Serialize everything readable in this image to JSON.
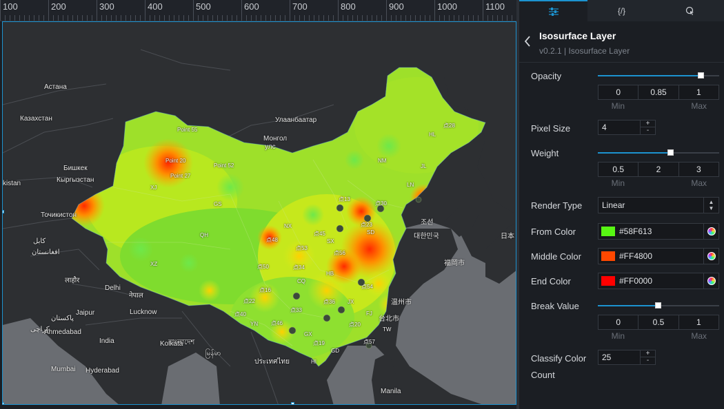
{
  "ruler": {
    "ticks": [
      "100",
      "200",
      "300",
      "400",
      "500",
      "600",
      "700",
      "800",
      "900",
      "1000",
      "1100"
    ]
  },
  "map": {
    "country_labels": [
      {
        "text": "Астана"
      },
      {
        "text": "Казахстан"
      },
      {
        "text": "Бишкек"
      },
      {
        "text": "Кыргызстан"
      },
      {
        "text": "kistan"
      },
      {
        "text": "Точикистон"
      },
      {
        "text": "کابل"
      },
      {
        "text": "افغانستان"
      },
      {
        "text": "Улаанбаатар"
      },
      {
        "text": "Монгол"
      },
      {
        "text": "улс"
      },
      {
        "text": "लाहौर"
      },
      {
        "text": "Delhi"
      },
      {
        "text": "नेपाल"
      },
      {
        "text": "Lucknow"
      },
      {
        "text": "Jaipur"
      },
      {
        "text": "پاکستان"
      },
      {
        "text": "کراچی"
      },
      {
        "text": "Ahmedabad"
      },
      {
        "text": "India"
      },
      {
        "text": "বাংলাদেশ"
      },
      {
        "text": "Kolkata"
      },
      {
        "text": "Mumbai"
      },
      {
        "text": "Hyderabad"
      },
      {
        "text": "မြန်မာ"
      },
      {
        "text": "ประเทศไทย"
      },
      {
        "text": "Manila"
      },
      {
        "text": "대한민국"
      },
      {
        "text": "조선"
      },
      {
        "text": "福岡市"
      },
      {
        "text": "日本"
      },
      {
        "text": "台北市"
      },
      {
        "text": "温州市"
      }
    ],
    "data_labels": [
      {
        "text": "Point 55"
      },
      {
        "text": "Point 20"
      },
      {
        "text": "Point 27"
      },
      {
        "text": "Point 52"
      },
      {
        "text": "XJ"
      },
      {
        "text": "GS"
      },
      {
        "text": "QH"
      },
      {
        "text": "XZ"
      },
      {
        "text": "NX"
      },
      {
        "text": "NM"
      },
      {
        "text": "HL"
      },
      {
        "text": "JL"
      },
      {
        "text": "LN"
      },
      {
        "text": "SD"
      },
      {
        "text": "SX"
      },
      {
        "text": "HB"
      },
      {
        "text": "CQ"
      },
      {
        "text": "JX"
      },
      {
        "text": "FJ"
      },
      {
        "text": "YN"
      },
      {
        "text": "GX"
      },
      {
        "text": "GD"
      },
      {
        "text": "HI"
      },
      {
        "text": "TW"
      },
      {
        "text": "点23"
      },
      {
        "text": "点48"
      },
      {
        "text": "点56"
      },
      {
        "text": "点53"
      },
      {
        "text": "点33"
      },
      {
        "text": "点45"
      },
      {
        "text": "点30"
      },
      {
        "text": "点36"
      },
      {
        "text": "点22"
      },
      {
        "text": "点40"
      },
      {
        "text": "点46"
      },
      {
        "text": "点34"
      },
      {
        "text": "点28"
      },
      {
        "text": "点19"
      },
      {
        "text": "点57"
      },
      {
        "text": "点54"
      },
      {
        "text": "点16"
      },
      {
        "text": "点20"
      },
      {
        "text": "点13"
      },
      {
        "text": "点50"
      }
    ]
  },
  "tabs": [
    {
      "label": "☰",
      "name": "tab-settings"
    },
    {
      "label": "{/}",
      "name": "tab-data"
    },
    {
      "label": "◔",
      "name": "tab-interaction"
    }
  ],
  "panel": {
    "title": "Isosurface Layer",
    "subtitle": "v0.2.1 | Isosurface Layer",
    "back_icon": "chevron-left-icon"
  },
  "opacity": {
    "label": "Opacity",
    "min": "0",
    "value": "0.85",
    "max": "1",
    "min_label": "Min",
    "max_label": "Max",
    "level": 0.85
  },
  "pixel_size": {
    "label": "Pixel Size",
    "value": "4",
    "up": "+",
    "down": "-"
  },
  "weight": {
    "label": "Weight",
    "min": "0.5",
    "value": "2",
    "max": "3",
    "min_label": "Min",
    "max_label": "Max",
    "level": 0.6
  },
  "render_type": {
    "label": "Render Type",
    "value": "Linear"
  },
  "from_color": {
    "label": "From Color",
    "hex": "#58F613",
    "swatch": "#58F613"
  },
  "middle_color": {
    "label": "Middle Color",
    "hex": "#FF4800",
    "swatch": "#FF4800"
  },
  "end_color": {
    "label": "End Color",
    "hex": "#FF0000",
    "swatch": "#FF0000"
  },
  "break_value": {
    "label": "Break Value",
    "min": "0",
    "value": "0.5",
    "max": "1",
    "min_label": "Min",
    "max_label": "Max",
    "level": 0.5
  },
  "classify": {
    "label_line1": "Classify Color",
    "label_line2": "Count",
    "value": "25",
    "up": "+",
    "down": "-"
  },
  "colors": {
    "accent": "#1C93D0",
    "panel_bg": "#1B1E23",
    "map_bg": "#2A2C2F"
  }
}
